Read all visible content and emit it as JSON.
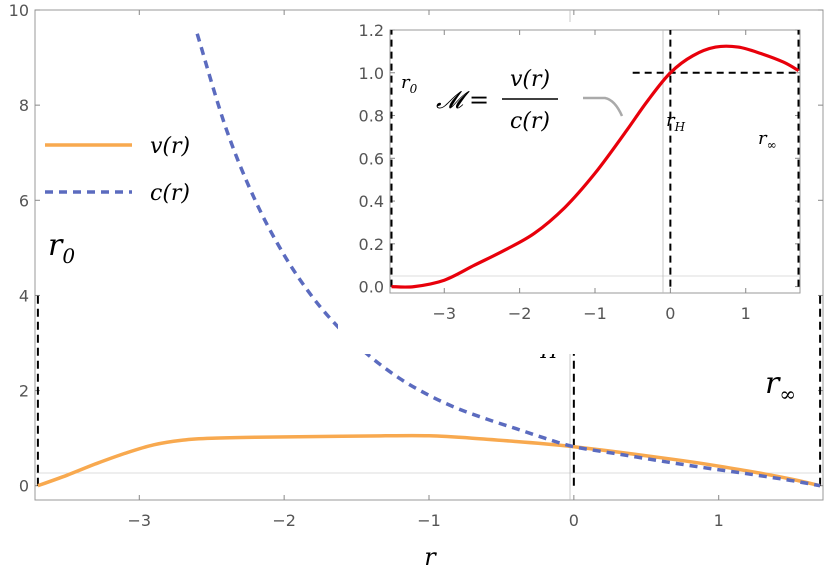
{
  "chart_data": [
    {
      "type": "line",
      "title": "",
      "xlabel": "r",
      "ylabel": "",
      "xlim": [
        -3.72,
        1.72
      ],
      "ylim": [
        -0.3,
        10
      ],
      "xticks": [
        -3,
        -2,
        -1,
        0,
        1
      ],
      "yticks": [
        0,
        2,
        4,
        6,
        8,
        10
      ],
      "legend_position": "left",
      "series": [
        {
          "name": "v(r)",
          "color": "#f8a94f",
          "style": "solid",
          "x": [
            -3.7,
            -3.5,
            -3.3,
            -3.1,
            -2.9,
            -2.7,
            -2.5,
            -2.2,
            -1.9,
            -1.6,
            -1.3,
            -1.0,
            -0.7,
            -0.4,
            -0.2,
            0,
            0.3,
            0.6,
            0.9,
            1.2,
            1.5,
            1.7
          ],
          "y": [
            0.0,
            0.22,
            0.46,
            0.68,
            0.86,
            0.96,
            1.0,
            1.02,
            1.03,
            1.04,
            1.05,
            1.05,
            1.0,
            0.93,
            0.88,
            0.82,
            0.71,
            0.59,
            0.46,
            0.31,
            0.14,
            0.0
          ]
        },
        {
          "name": "c(r)",
          "color": "#5b6bbf",
          "style": "dashed",
          "x": [
            -2.6,
            -2.4,
            -2.2,
            -2.0,
            -1.8,
            -1.6,
            -1.4,
            -1.2,
            -1.0,
            -0.8,
            -0.6,
            -0.4,
            -0.2,
            0,
            0.3,
            0.6,
            0.9,
            1.2,
            1.5,
            1.7
          ],
          "y": [
            9.5,
            7.5,
            6.0,
            4.85,
            3.95,
            3.25,
            2.7,
            2.25,
            1.9,
            1.62,
            1.4,
            1.2,
            1.0,
            0.82,
            0.67,
            0.52,
            0.38,
            0.25,
            0.11,
            0.0
          ]
        }
      ],
      "vertical_markers": [
        {
          "label": "r_0",
          "x": -3.7,
          "y_top": 4.0
        },
        {
          "label": "r_H",
          "x": 0.0,
          "y_top": 4.0
        },
        {
          "label": "r_∞",
          "x": 1.7,
          "y_top": 4.0
        }
      ],
      "grid": false
    },
    {
      "type": "line",
      "title": "",
      "annotation": "𝓜 = v(r) / c(r)",
      "xlabel": "",
      "ylabel": "",
      "xlim": [
        -3.72,
        1.72
      ],
      "ylim": [
        -0.03,
        1.2
      ],
      "xticks": [
        -3,
        -2,
        -1,
        0,
        1
      ],
      "yticks": [
        0.0,
        0.2,
        0.4,
        0.6,
        0.8,
        1.0,
        1.2
      ],
      "series": [
        {
          "name": "𝓜",
          "color": "#e8000b",
          "style": "solid",
          "x": [
            -3.7,
            -3.4,
            -3.0,
            -2.6,
            -2.2,
            -1.8,
            -1.4,
            -1.0,
            -0.6,
            -0.3,
            0,
            0.3,
            0.6,
            0.9,
            1.2,
            1.5,
            1.7
          ],
          "y": [
            0.0,
            0.0,
            0.03,
            0.1,
            0.17,
            0.25,
            0.37,
            0.53,
            0.72,
            0.87,
            1.0,
            1.08,
            1.12,
            1.12,
            1.09,
            1.05,
            1.01
          ]
        }
      ],
      "horizontal_markers": [
        {
          "y": 1.0,
          "x_start": -0.5,
          "x_end": 1.7
        }
      ],
      "vertical_markers": [
        {
          "label": "r_0",
          "x": -3.7,
          "y_top": 1.2
        },
        {
          "label": "r_H",
          "x": 0.0,
          "y_top": 1.2
        },
        {
          "label": "r_∞",
          "x": 1.7,
          "y_top": 1.2
        }
      ],
      "grid": false
    }
  ],
  "labels": {
    "r0_base": "r",
    "r0_sub": "0",
    "rH_base": "r",
    "rH_sub": "H",
    "rinf_base": "r",
    "rinf_sub": "∞",
    "x_axis": "r",
    "legend_v": "v(r)",
    "legend_c": "c(r)",
    "inset_M": "𝓜",
    "inset_eq": "=",
    "inset_num": "v(r)",
    "inset_den": "c(r)"
  }
}
